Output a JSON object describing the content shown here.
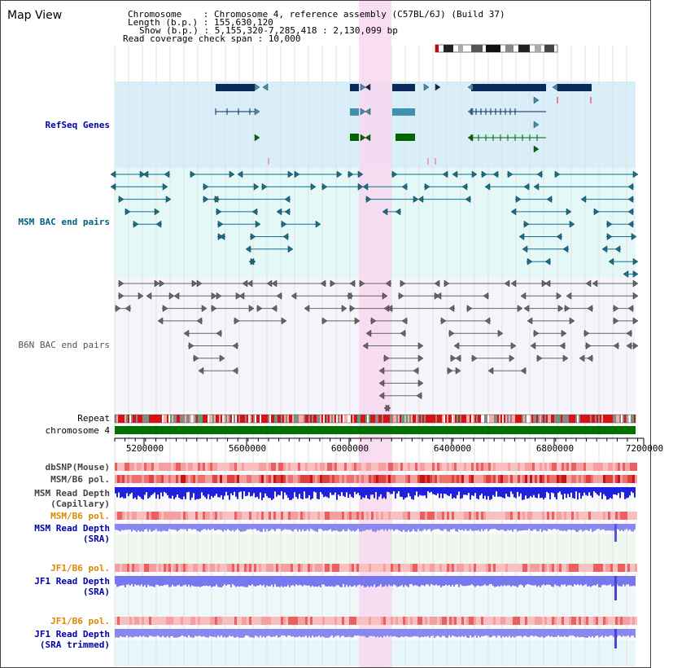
{
  "view": {
    "title": "Map View"
  },
  "info": {
    "chromosome": "Chromosome    : Chromosome 4, reference assembly (C57BL/6J) (Build 37)",
    "length": "Length (b.p.) : 155,630,120",
    "show": "Show (b.p.) : 5,155,320-7,285,418 : 2,130,099 bp",
    "coverage": "Read coverage check span : 10,000"
  },
  "tracks": {
    "refseq": "RefSeq Genes",
    "msm_bac": "MSM BAC end pairs",
    "b6n_bac": "B6N BAC end pairs",
    "repeat": "Repeat",
    "chromosome": "chromosome 4",
    "dbsnp": "dbSNP(Mouse)",
    "msm_b6_pol_1": "MSM/B6 pol.",
    "msm_depth_cap_1": "MSM Read Depth",
    "msm_depth_cap_2": "(Capillary)",
    "msm_b6_pol_2": "MSM/B6 pol.",
    "msm_depth_sra_1": "MSM Read Depth",
    "msm_depth_sra_2": "(SRA)",
    "jf1_b6_pol_1": "JF1/B6 pol.",
    "jf1_depth_sra_1": "JF1 Read Depth",
    "jf1_depth_sra_2": "(SRA)",
    "jf1_b6_pol_2": "JF1/B6 pol.",
    "jf1_depth_trim_1": "JF1 Read Depth",
    "jf1_depth_trim_2": "(SRA trimmed)"
  },
  "axis": {
    "ticks": [
      "5200000",
      "5600000",
      "6000000",
      "6400000",
      "6800000",
      "7200000"
    ]
  },
  "colors": {
    "refseq_label": "#0000aa",
    "msm_label": "#006080",
    "b6n_label": "#555555",
    "pol_label_msm": "#dd8800",
    "depth_label": "#0000aa",
    "highlight": "#f8d8f0",
    "refseq_bg": "#d8eef8",
    "msm_bg": "#e4f8f8",
    "b6n_bg": "#f4f4fa",
    "chromosome_bar": "#007000"
  }
}
